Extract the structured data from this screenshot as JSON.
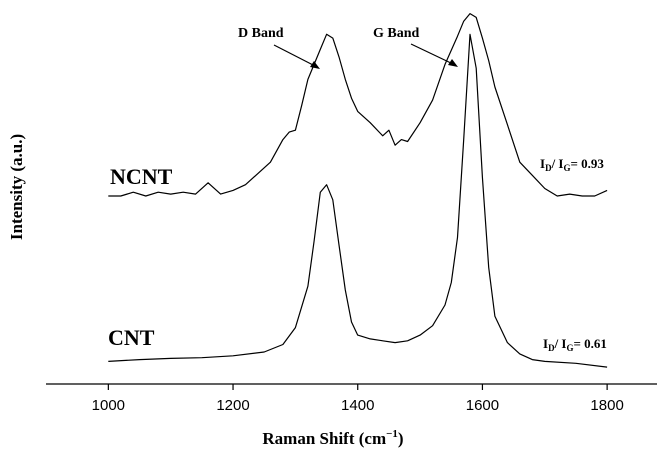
{
  "chart_data": {
    "type": "line",
    "title": "",
    "xlabel": "Raman Shift (cm",
    "xlabel_sup": "−1",
    "xlabel_close": ")",
    "ylabel": "Intensity (a.u.)",
    "xlim": [
      900,
      1880
    ],
    "ylim": [
      0,
      10
    ],
    "x_ticks": [
      1000,
      1200,
      1400,
      1600,
      1800
    ],
    "x_tick_labels": [
      "1000",
      "1200",
      "1400",
      "1600",
      "1800"
    ],
    "grid": false,
    "legend": "none",
    "series": [
      {
        "name": "NCNT",
        "color": "#000000",
        "x": [
          1000,
          1020,
          1040,
          1060,
          1080,
          1100,
          1120,
          1140,
          1160,
          1180,
          1200,
          1220,
          1240,
          1260,
          1280,
          1290,
          1300,
          1310,
          1320,
          1330,
          1340,
          1350,
          1360,
          1370,
          1380,
          1390,
          1400,
          1420,
          1440,
          1450,
          1460,
          1470,
          1480,
          1500,
          1520,
          1540,
          1560,
          1570,
          1580,
          1590,
          1600,
          1610,
          1620,
          1640,
          1660,
          1680,
          1700,
          1720,
          1740,
          1760,
          1780,
          1800
        ],
        "y": [
          5.0,
          5.0,
          5.1,
          5.0,
          5.1,
          5.05,
          5.1,
          5.05,
          5.35,
          5.05,
          5.15,
          5.3,
          5.6,
          5.9,
          6.5,
          6.7,
          6.75,
          7.4,
          8.1,
          8.5,
          8.9,
          9.3,
          9.2,
          8.7,
          8.1,
          7.6,
          7.25,
          6.95,
          6.6,
          6.75,
          6.35,
          6.5,
          6.45,
          6.95,
          7.55,
          8.5,
          9.25,
          9.65,
          9.85,
          9.75,
          9.2,
          8.6,
          7.9,
          6.9,
          5.9,
          5.55,
          5.2,
          5.0,
          5.05,
          5.0,
          5.0,
          5.15
        ]
      },
      {
        "name": "CNT",
        "color": "#000000",
        "x": [
          1000,
          1050,
          1100,
          1150,
          1200,
          1250,
          1280,
          1300,
          1320,
          1330,
          1340,
          1350,
          1360,
          1370,
          1380,
          1390,
          1400,
          1420,
          1440,
          1460,
          1480,
          1500,
          1520,
          1540,
          1550,
          1560,
          1570,
          1580,
          1590,
          1600,
          1610,
          1620,
          1640,
          1660,
          1680,
          1700,
          1750,
          1800
        ],
        "y": [
          0.6,
          0.65,
          0.68,
          0.7,
          0.75,
          0.85,
          1.05,
          1.5,
          2.6,
          3.8,
          5.1,
          5.3,
          4.9,
          3.7,
          2.5,
          1.65,
          1.3,
          1.2,
          1.15,
          1.1,
          1.15,
          1.3,
          1.55,
          2.1,
          2.7,
          3.9,
          6.5,
          9.3,
          8.4,
          5.5,
          3.1,
          1.8,
          1.1,
          0.8,
          0.65,
          0.6,
          0.55,
          0.45
        ]
      }
    ]
  },
  "annotations": {
    "ncnt_label": "NCNT",
    "cnt_label": "CNT",
    "d_band": "D Band",
    "g_band": "G Band",
    "ncnt_ratio": {
      "pre": "I",
      "sub1": "D",
      "mid": "/ I",
      "sub2": "G",
      "post": "= 0.93"
    },
    "cnt_ratio": {
      "pre": "I",
      "sub1": "D",
      "mid": "/ I",
      "sub2": "G",
      "post": "= 0.61"
    }
  }
}
